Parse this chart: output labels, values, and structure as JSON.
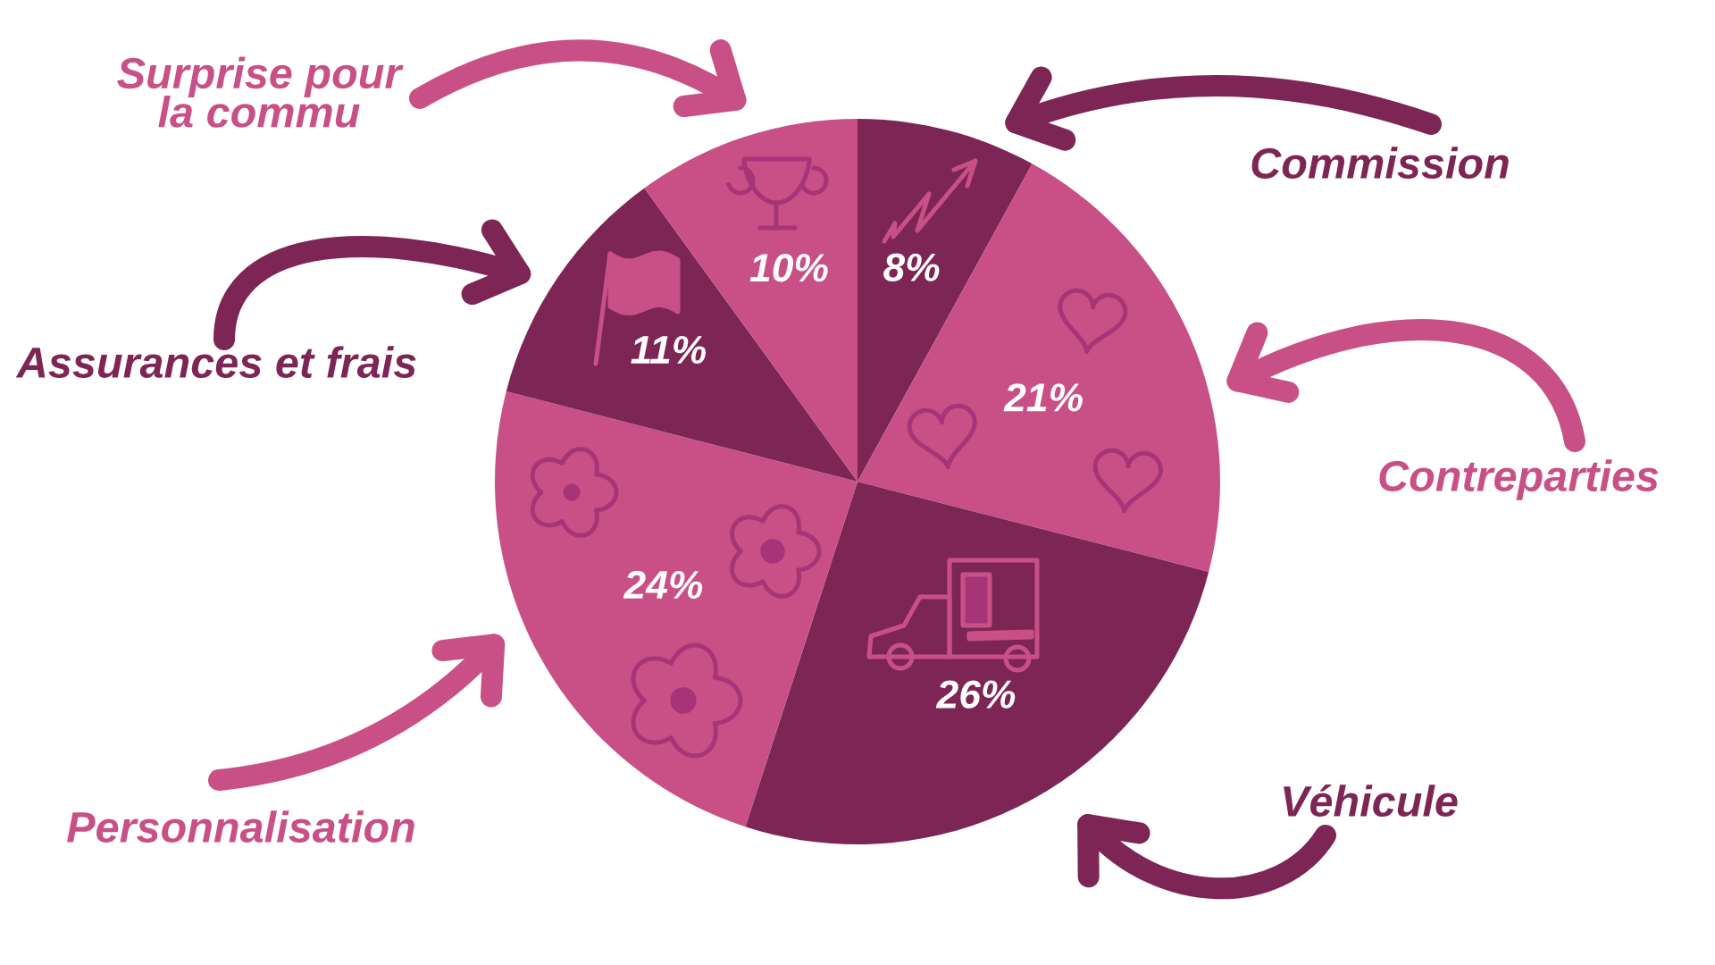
{
  "chart_data": {
    "type": "pie",
    "categories": [
      "Commission",
      "Contreparties",
      "Véhicule",
      "Personnalisation",
      "Assurances et frais",
      "Surprise pour\nla commu"
    ],
    "values": [
      8,
      21,
      26,
      24,
      11,
      10
    ],
    "colors": [
      "#7d2656",
      "#c85086",
      "#7d2656",
      "#c85086",
      "#7d2656",
      "#c85086"
    ],
    "value_labels": [
      "8%",
      "21%",
      "26%",
      "24%",
      "11%",
      "10%"
    ]
  }
}
